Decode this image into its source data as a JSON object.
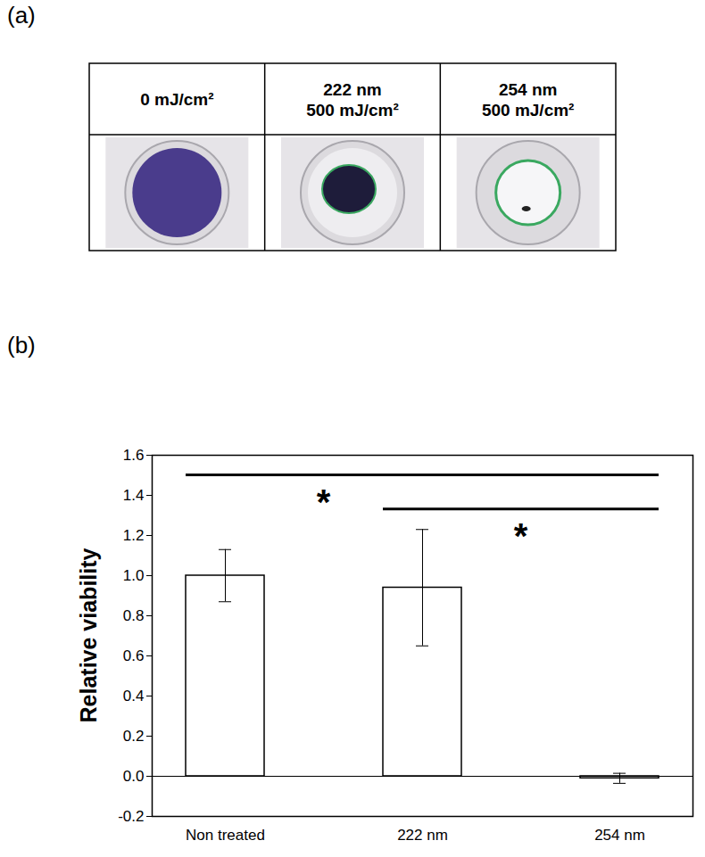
{
  "panel_labels": [
    "(a)",
    "(b)"
  ],
  "table": {
    "columns": [
      [
        "0 mJ/cm²"
      ],
      [
        "222 nm",
        "500 mJ/cm²"
      ],
      [
        "254 nm",
        "500 mJ/cm²"
      ]
    ]
  },
  "chart_data": {
    "type": "bar",
    "categories": [
      "Non treated",
      "222 nm",
      "254 nm"
    ],
    "values": [
      1.0,
      0.94,
      -0.01
    ],
    "errors": [
      0.13,
      0.29,
      0.025
    ],
    "color": "#ffffff",
    "y_label": "Relative viability",
    "ylim": [
      -0.2,
      1.6
    ],
    "yticks": [
      -0.2,
      {
        "value": 0,
        "label": "0.0"
      },
      0.2,
      0.4,
      0.6,
      0.8,
      {
        "value": 1,
        "label": "1.0"
      },
      1.2,
      1.4,
      1.6
    ],
    "grid": false,
    "significance": [
      {
        "from": "Non treated",
        "to": "254 nm",
        "y": 1.5,
        "label": "*"
      },
      {
        "from": "222 nm",
        "to": "254 nm",
        "y": 1.33,
        "label": "*"
      }
    ]
  }
}
